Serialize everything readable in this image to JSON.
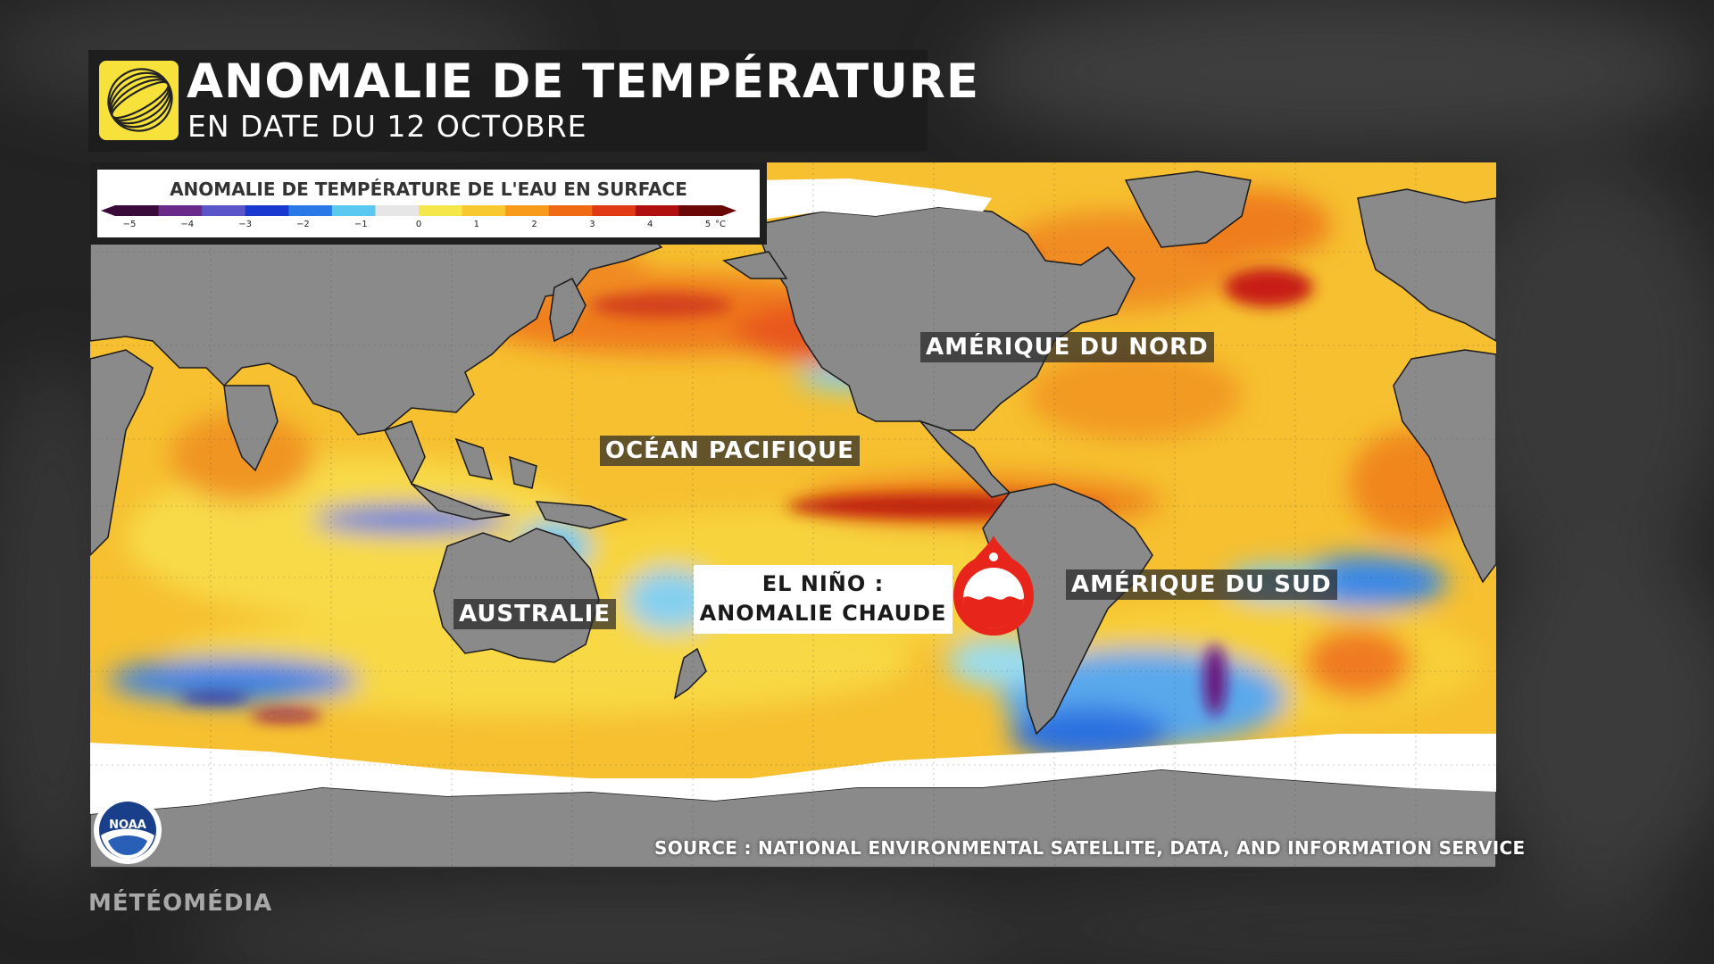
{
  "header": {
    "title": "ANOMALIE DE TEMPÉRATURE",
    "subtitle": "EN DATE DU 12 OCTOBRE",
    "logo_icon": "swirl-globe-icon",
    "logo_color": "#f7e23c"
  },
  "legend": {
    "title": "ANOMALIE DE TEMPÉRATURE DE L'EAU EN SURFACE",
    "ticks": [
      "−5",
      "−4",
      "−3",
      "−2",
      "−1",
      "0",
      "1",
      "2",
      "3",
      "4",
      "5"
    ],
    "unit": "°C",
    "colors": [
      "#3a0a3a",
      "#6a2a8a",
      "#5a55c8",
      "#1838d0",
      "#2a78e8",
      "#5ac8f0",
      "#e6e6e6",
      "#f5e64a",
      "#f8c830",
      "#f89a1a",
      "#f06a14",
      "#e03a14",
      "#b01010",
      "#6a0808"
    ]
  },
  "map": {
    "land_color": "#8a8a8a",
    "ice_color": "#ffffff",
    "labels": {
      "north_america": "AMÉRIQUE DU NORD",
      "pacific": "OCÉAN PACIFIQUE",
      "south_america": "AMÉRIQUE DU SUD",
      "australia": "AUSTRALIE"
    },
    "callout": {
      "line1": "EL NIÑO :",
      "line2": "ANOMALIE CHAUDE",
      "icon": "warm-water-drop-icon",
      "icon_color": "#e8251a"
    }
  },
  "footer": {
    "source": "SOURCE : NATIONAL ENVIRONMENTAL SATELLITE, DATA, AND INFORMATION SERVICE",
    "noaa_badge": "NOAA",
    "brand": "MÉTÉOMÉDIA"
  }
}
